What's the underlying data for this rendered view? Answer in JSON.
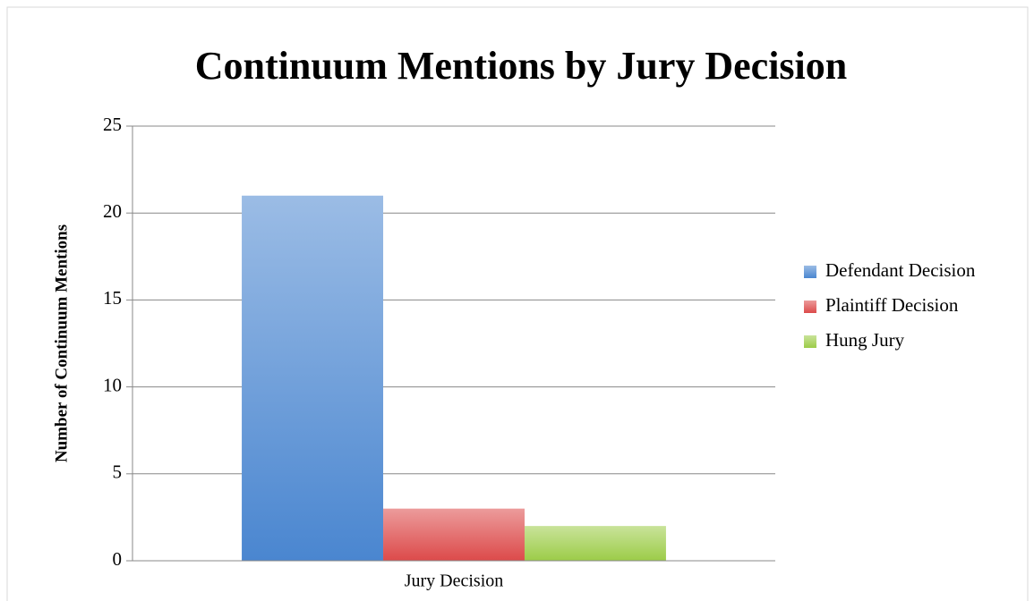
{
  "chart_data": {
    "type": "bar",
    "title": "Continuum Mentions by Jury Decision",
    "y_label": "Number of Continuum Mentions",
    "categories": [
      "Jury Decision"
    ],
    "series": [
      {
        "name": "Defendant Decision",
        "color": "#4a86d0",
        "values": [
          21
        ]
      },
      {
        "name": "Plaintiff Decision",
        "color": "#dc4a4a",
        "values": [
          3
        ]
      },
      {
        "name": "Hung Jury",
        "color": "#9ccc48",
        "values": [
          2
        ]
      }
    ],
    "ylim": [
      0,
      25
    ],
    "yticks": [
      0,
      5,
      10,
      15,
      20,
      25
    ],
    "grid": true,
    "legend": "right"
  }
}
